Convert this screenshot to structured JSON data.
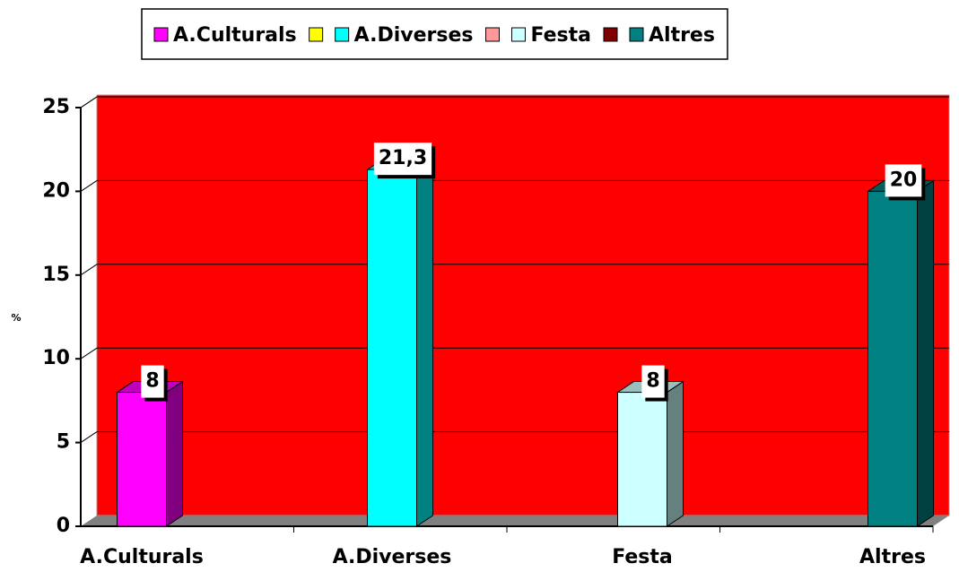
{
  "chart_data": {
    "type": "bar",
    "categories": [
      "A.Culturals",
      "A.Diverses",
      "Festa",
      "Altres"
    ],
    "series": [
      {
        "name": "A.Culturals",
        "color": "#ff00ff",
        "values": [
          8,
          null,
          null,
          null
        ],
        "value_labels": [
          "8",
          null,
          null,
          null
        ]
      },
      {
        "name": null,
        "color": "#ffff00",
        "values": [
          null,
          null,
          null,
          null
        ]
      },
      {
        "name": "A.Diverses",
        "color": "#00ffff",
        "values": [
          null,
          21.3,
          null,
          null
        ],
        "value_labels": [
          null,
          "21,3",
          null,
          null
        ]
      },
      {
        "name": null,
        "color": "#ff9999",
        "values": [
          null,
          null,
          null,
          null
        ]
      },
      {
        "name": "Festa",
        "color": "#ccffff",
        "values": [
          null,
          null,
          8,
          null
        ],
        "value_labels": [
          null,
          null,
          "8",
          null
        ]
      },
      {
        "name": null,
        "color": "#800000",
        "values": [
          null,
          null,
          null,
          null
        ]
      },
      {
        "name": "Altres",
        "color": "#008080",
        "values": [
          null,
          null,
          null,
          20
        ],
        "value_labels": [
          null,
          null,
          null,
          "20"
        ]
      }
    ],
    "y_label": "%",
    "ylim": [
      0,
      25
    ],
    "yticks": [
      0,
      5,
      10,
      15,
      20,
      25
    ],
    "grid": true,
    "background": "#ff0000",
    "legend": "top"
  }
}
